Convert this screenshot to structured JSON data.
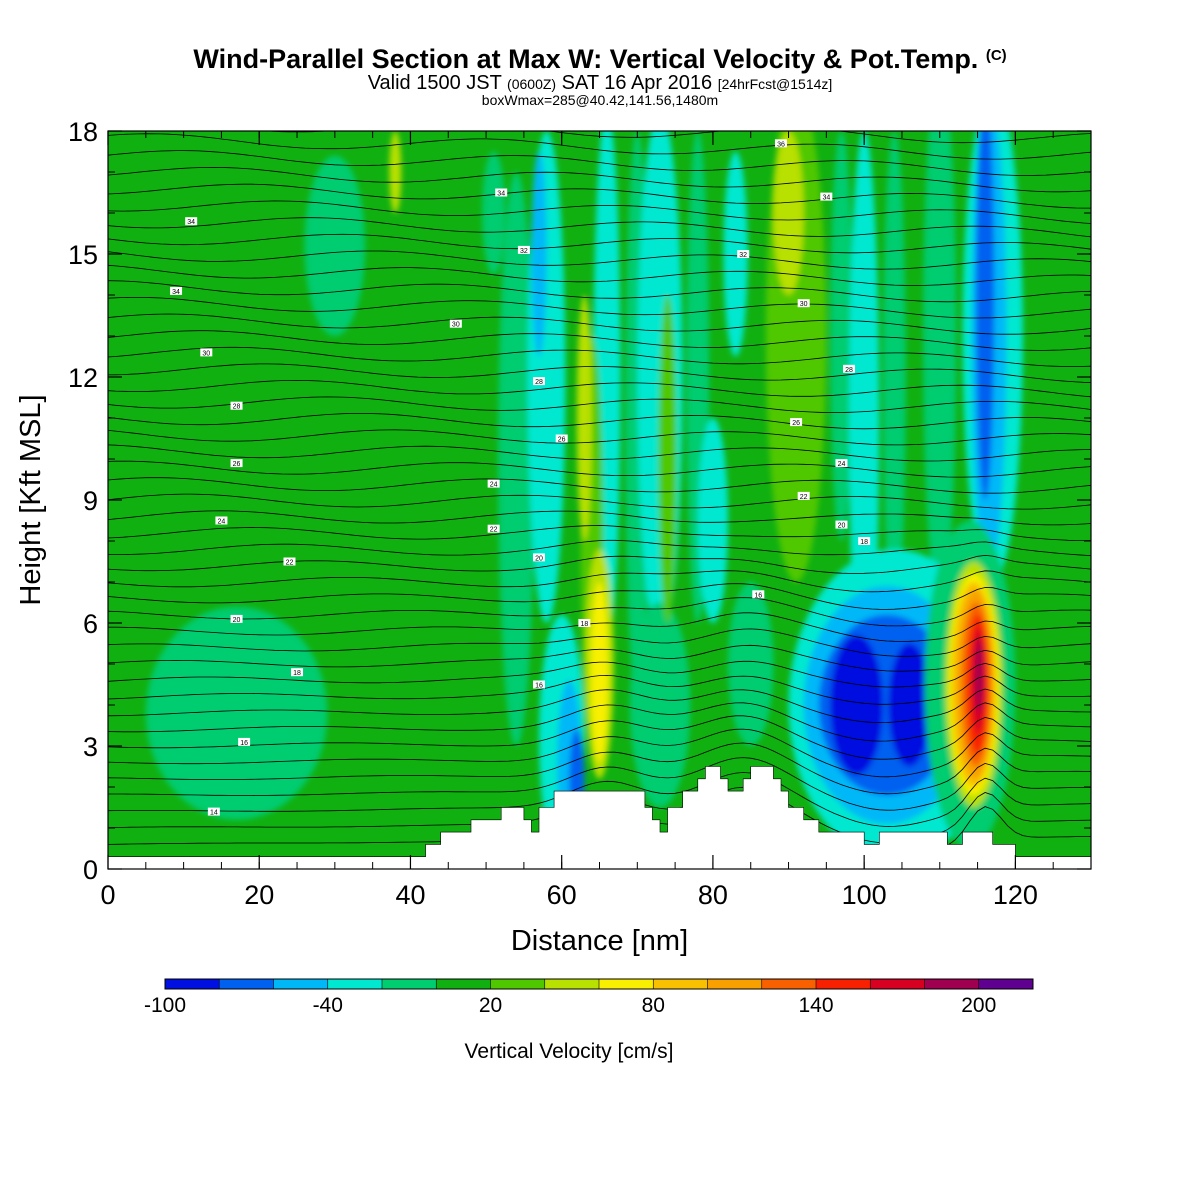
{
  "header": {
    "title_main": "Wind-Parallel Section at Max W: Vertical Velocity & Pot.Temp.",
    "title_tag": "(C)",
    "sub_a": "Valid 1500 JST",
    "sub_b": "(0600Z)",
    "sub_c": "SAT 16 Apr 2016",
    "sub_d": "[24hrFcst@1514z]",
    "box_info": "boxWmax=285@40.42,141.56,1480m"
  },
  "chart_data": {
    "type": "heatmap",
    "xlabel": "Distance [nm]",
    "ylabel": "Height [Kft MSL]",
    "xlim": [
      0,
      130
    ],
    "ylim": [
      0,
      18
    ],
    "x_ticks": [
      0,
      20,
      40,
      60,
      80,
      100,
      120
    ],
    "y_ticks": [
      0,
      3,
      6,
      9,
      12,
      15,
      18
    ],
    "colorbar": {
      "label": "Vertical Velocity [cm/s]",
      "tick_labels": [
        "-100",
        "-40",
        "20",
        "80",
        "140",
        "200"
      ],
      "tick_values": [
        -100,
        -40,
        20,
        80,
        140,
        200
      ],
      "bounds": [
        -100,
        -80,
        -60,
        -40,
        -20,
        0,
        20,
        40,
        60,
        80,
        100,
        120,
        140,
        160,
        180,
        200,
        220
      ],
      "colors": [
        "#0010e0",
        "#0060f0",
        "#00b8f8",
        "#00e8d0",
        "#00cc70",
        "#10b010",
        "#50c800",
        "#b8e000",
        "#f8f000",
        "#f8c000",
        "#f8a000",
        "#f86000",
        "#f82000",
        "#d80020",
        "#a00050",
        "#600090"
      ]
    },
    "background_level": "#10b010",
    "regions": [
      {
        "shape": "ellipse",
        "cx": 17,
        "cy": 3.8,
        "rx": 12,
        "ry": 2.6,
        "color": "#00cc70"
      },
      {
        "shape": "ellipse",
        "cx": 30,
        "cy": 15.2,
        "rx": 4,
        "ry": 2.2,
        "color": "#00cc70"
      },
      {
        "shape": "ellipse",
        "cx": 54,
        "cy": 10,
        "rx": 2.4,
        "ry": 7,
        "color": "#00cc70"
      },
      {
        "shape": "ellipse",
        "cx": 58,
        "cy": 12,
        "rx": 2.5,
        "ry": 6,
        "color": "#00e8d0"
      },
      {
        "shape": "ellipse",
        "cx": 57,
        "cy": 15,
        "rx": 1,
        "ry": 2.5,
        "color": "#00b8f8"
      },
      {
        "shape": "ellipse",
        "cx": 60,
        "cy": 3.2,
        "rx": 3,
        "ry": 3,
        "color": "#00e8d0"
      },
      {
        "shape": "ellipse",
        "cx": 61,
        "cy": 2.6,
        "rx": 1.6,
        "ry": 2,
        "color": "#00b8f8"
      },
      {
        "shape": "ellipse",
        "cx": 62,
        "cy": 2.2,
        "rx": 1,
        "ry": 1.2,
        "color": "#0060f0"
      },
      {
        "shape": "ellipse",
        "cx": 66,
        "cy": 12,
        "rx": 1.8,
        "ry": 6.5,
        "color": "#00e8d0"
      },
      {
        "shape": "ellipse",
        "cx": 70,
        "cy": 11,
        "rx": 1.6,
        "ry": 7,
        "color": "#00cc70"
      },
      {
        "shape": "ellipse",
        "cx": 73,
        "cy": 12,
        "rx": 3,
        "ry": 6.5,
        "color": "#00e8d0"
      },
      {
        "shape": "ellipse",
        "cx": 73,
        "cy": 4,
        "rx": 4,
        "ry": 2.5,
        "color": "#00cc70"
      },
      {
        "shape": "ellipse",
        "cx": 78,
        "cy": 12,
        "rx": 1.5,
        "ry": 6,
        "color": "#00cc70"
      },
      {
        "shape": "ellipse",
        "cx": 80,
        "cy": 8.5,
        "rx": 2,
        "ry": 2.5,
        "color": "#00e8d0"
      },
      {
        "shape": "ellipse",
        "cx": 83,
        "cy": 15,
        "rx": 1.6,
        "ry": 2.5,
        "color": "#00e8d0"
      },
      {
        "shape": "ellipse",
        "cx": 85,
        "cy": 5,
        "rx": 3,
        "ry": 2,
        "color": "#00cc70"
      },
      {
        "shape": "ellipse",
        "cx": 91,
        "cy": 13,
        "rx": 4,
        "ry": 6,
        "color": "#50c800"
      },
      {
        "shape": "ellipse",
        "cx": 90,
        "cy": 16,
        "rx": 2,
        "ry": 2,
        "color": "#b8e000"
      },
      {
        "shape": "ellipse",
        "cx": 97,
        "cy": 13,
        "rx": 1.5,
        "ry": 5,
        "color": "#00cc70"
      },
      {
        "shape": "ellipse",
        "cx": 100,
        "cy": 11,
        "rx": 2,
        "ry": 7,
        "color": "#00e8d0"
      },
      {
        "shape": "ellipse",
        "cx": 104,
        "cy": 12,
        "rx": 1.5,
        "ry": 6,
        "color": "#00cc70"
      },
      {
        "shape": "ellipse",
        "cx": 110,
        "cy": 13,
        "rx": 2.2,
        "ry": 6.5,
        "color": "#00cc70"
      },
      {
        "shape": "ellipse",
        "cx": 117,
        "cy": 13,
        "rx": 4,
        "ry": 6,
        "color": "#00e8d0"
      },
      {
        "shape": "ellipse",
        "cx": 116.5,
        "cy": 13,
        "rx": 2.3,
        "ry": 5.8,
        "color": "#00b8f8"
      },
      {
        "shape": "ellipse",
        "cx": 116,
        "cy": 14,
        "rx": 1.2,
        "ry": 5,
        "color": "#0060f0"
      },
      {
        "shape": "ellipse",
        "cx": 104,
        "cy": 4,
        "rx": 14,
        "ry": 3.8,
        "color": "#00e8d0"
      },
      {
        "shape": "ellipse",
        "cx": 103,
        "cy": 4,
        "rx": 11,
        "ry": 2.9,
        "color": "#00b8f8"
      },
      {
        "shape": "ellipse",
        "cx": 103,
        "cy": 4,
        "rx": 9,
        "ry": 2.2,
        "color": "#0060f0"
      },
      {
        "shape": "ellipse",
        "cx": 99,
        "cy": 4,
        "rx": 3.5,
        "ry": 1.7,
        "color": "#0010e0"
      },
      {
        "shape": "ellipse",
        "cx": 106,
        "cy": 4,
        "rx": 2.8,
        "ry": 1.5,
        "color": "#0010e0"
      },
      {
        "shape": "ellipse",
        "cx": 64,
        "cy": 8,
        "rx": 1.5,
        "ry": 5,
        "color": "#50c800"
      },
      {
        "shape": "ellipse",
        "cx": 63,
        "cy": 11,
        "rx": 1,
        "ry": 3,
        "color": "#b8e000"
      },
      {
        "shape": "ellipse",
        "cx": 65,
        "cy": 5,
        "rx": 1.9,
        "ry": 2.8,
        "color": "#b8e000"
      },
      {
        "shape": "ellipse",
        "cx": 65,
        "cy": 4.8,
        "rx": 1.1,
        "ry": 2.2,
        "color": "#f8f000"
      },
      {
        "shape": "ellipse",
        "cx": 74,
        "cy": 10,
        "rx": 1.2,
        "ry": 4,
        "color": "#50c800"
      },
      {
        "shape": "ellipse",
        "cx": 51,
        "cy": 16,
        "rx": 1.5,
        "ry": 1.5,
        "color": "#00cc70"
      },
      {
        "shape": "ellipse",
        "cx": 38,
        "cy": 17,
        "rx": 0.8,
        "ry": 1,
        "color": "#b8e000"
      },
      {
        "shape": "ellipse",
        "cx": 114,
        "cy": 4.5,
        "rx": 6,
        "ry": 4,
        "color": "#00cc70"
      },
      {
        "shape": "ellipse",
        "cx": 114.5,
        "cy": 4.5,
        "rx": 3.8,
        "ry": 3.0,
        "color": "#b8e000"
      },
      {
        "shape": "ellipse",
        "cx": 114.5,
        "cy": 4.5,
        "rx": 3.3,
        "ry": 2.7,
        "color": "#f8f000"
      },
      {
        "shape": "ellipse",
        "cx": 114.5,
        "cy": 4.5,
        "rx": 2.9,
        "ry": 2.5,
        "color": "#f8c000"
      },
      {
        "shape": "ellipse",
        "cx": 114.7,
        "cy": 4.5,
        "rx": 2.4,
        "ry": 2.3,
        "color": "#f8a000"
      },
      {
        "shape": "ellipse",
        "cx": 114.8,
        "cy": 4.5,
        "rx": 1.9,
        "ry": 2.0,
        "color": "#f86000"
      },
      {
        "shape": "ellipse",
        "cx": 115,
        "cy": 4.5,
        "rx": 1.4,
        "ry": 1.7,
        "color": "#f82000"
      },
      {
        "shape": "ellipse",
        "cx": 115.1,
        "cy": 4.6,
        "rx": 0.9,
        "ry": 1.3,
        "color": "#d80020"
      },
      {
        "shape": "ellipse",
        "cx": 115.2,
        "cy": 4.7,
        "rx": 0.5,
        "ry": 0.9,
        "color": "#a00050"
      }
    ],
    "terrain": [
      [
        0,
        0.3
      ],
      [
        42,
        0.3
      ],
      [
        42,
        0.6
      ],
      [
        44,
        0.6
      ],
      [
        44,
        0.9
      ],
      [
        48,
        0.9
      ],
      [
        48,
        1.2
      ],
      [
        52,
        1.2
      ],
      [
        52,
        1.5
      ],
      [
        55,
        1.5
      ],
      [
        55,
        1.2
      ],
      [
        56,
        1.2
      ],
      [
        56,
        0.9
      ],
      [
        57,
        0.9
      ],
      [
        57,
        1.5
      ],
      [
        59,
        1.5
      ],
      [
        59,
        1.9
      ],
      [
        64,
        1.9
      ],
      [
        64,
        1.9
      ],
      [
        71,
        1.9
      ],
      [
        71,
        1.5
      ],
      [
        72,
        1.5
      ],
      [
        72,
        1.2
      ],
      [
        73,
        1.2
      ],
      [
        73,
        0.9
      ],
      [
        74,
        0.9
      ],
      [
        74,
        1.5
      ],
      [
        76,
        1.5
      ],
      [
        76,
        1.9
      ],
      [
        78,
        1.9
      ],
      [
        78,
        2.2
      ],
      [
        79,
        2.2
      ],
      [
        79,
        2.5
      ],
      [
        81,
        2.5
      ],
      [
        81,
        2.2
      ],
      [
        82,
        2.2
      ],
      [
        82,
        1.9
      ],
      [
        84,
        1.9
      ],
      [
        84,
        2.2
      ],
      [
        85,
        2.2
      ],
      [
        85,
        2.5
      ],
      [
        88,
        2.5
      ],
      [
        88,
        2.2
      ],
      [
        89,
        2.2
      ],
      [
        89,
        1.9
      ],
      [
        90,
        1.9
      ],
      [
        90,
        1.5
      ],
      [
        92,
        1.5
      ],
      [
        92,
        1.2
      ],
      [
        94,
        1.2
      ],
      [
        94,
        0.9
      ],
      [
        100,
        0.9
      ],
      [
        100,
        0.6
      ],
      [
        102,
        0.6
      ],
      [
        102,
        0.9
      ],
      [
        111,
        0.9
      ],
      [
        111,
        0.6
      ],
      [
        113,
        0.6
      ],
      [
        113,
        0.9
      ],
      [
        117,
        0.9
      ],
      [
        117,
        0.6
      ],
      [
        120,
        0.6
      ],
      [
        120,
        0.3
      ],
      [
        130,
        0.3
      ]
    ],
    "isentropes": {
      "count": 46,
      "left_bottom": 0.6,
      "left_top": 18.6,
      "right_bottom": 0.8,
      "right_top": 18.2,
      "labels": [
        {
          "text": "34",
          "x": 11,
          "y": 15.8
        },
        {
          "text": "34",
          "x": 9,
          "y": 14.1
        },
        {
          "text": "30",
          "x": 13,
          "y": 12.6
        },
        {
          "text": "28",
          "x": 17,
          "y": 11.3
        },
        {
          "text": "26",
          "x": 17,
          "y": 9.9
        },
        {
          "text": "24",
          "x": 15,
          "y": 8.5
        },
        {
          "text": "20",
          "x": 17,
          "y": 6.1
        },
        {
          "text": "18",
          "x": 25,
          "y": 4.8
        },
        {
          "text": "16",
          "x": 18,
          "y": 3.1
        },
        {
          "text": "14",
          "x": 14,
          "y": 1.4
        },
        {
          "text": "22",
          "x": 24,
          "y": 7.5
        },
        {
          "text": "34",
          "x": 52,
          "y": 16.5
        },
        {
          "text": "32",
          "x": 55,
          "y": 15.1
        },
        {
          "text": "30",
          "x": 46,
          "y": 13.3
        },
        {
          "text": "28",
          "x": 57,
          "y": 11.9
        },
        {
          "text": "26",
          "x": 60,
          "y": 10.5
        },
        {
          "text": "24",
          "x": 51,
          "y": 9.4
        },
        {
          "text": "22",
          "x": 51,
          "y": 8.3
        },
        {
          "text": "20",
          "x": 57,
          "y": 7.6
        },
        {
          "text": "18",
          "x": 63,
          "y": 6.0
        },
        {
          "text": "16",
          "x": 57,
          "y": 4.5
        },
        {
          "text": "36",
          "x": 89,
          "y": 17.7
        },
        {
          "text": "34",
          "x": 95,
          "y": 16.4
        },
        {
          "text": "32",
          "x": 84,
          "y": 15.0
        },
        {
          "text": "30",
          "x": 92,
          "y": 13.8
        },
        {
          "text": "28",
          "x": 98,
          "y": 12.2
        },
        {
          "text": "26",
          "x": 91,
          "y": 10.9
        },
        {
          "text": "24",
          "x": 97,
          "y": 9.9
        },
        {
          "text": "22",
          "x": 92,
          "y": 9.1
        },
        {
          "text": "20",
          "x": 97,
          "y": 8.4
        },
        {
          "text": "18",
          "x": 100,
          "y": 8.0
        },
        {
          "text": "16",
          "x": 86,
          "y": 6.7
        }
      ]
    }
  }
}
